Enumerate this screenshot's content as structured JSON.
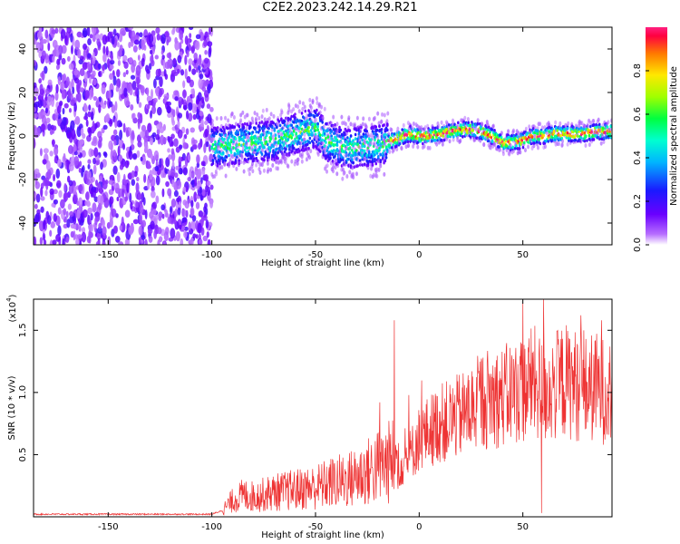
{
  "title": "C2E2.2023.242.14.29.R21",
  "chart_data": [
    {
      "type": "heatmap",
      "xlabel": "Height of straight line (km)",
      "ylabel": "Frequency (Hz)",
      "xlim": [
        -186,
        93
      ],
      "ylim": [
        -50,
        50
      ],
      "xticks": [
        -150,
        -100,
        -50,
        0,
        50
      ],
      "yticks": [
        -40,
        -20,
        0,
        20,
        40
      ],
      "colorbar": {
        "label": "Normalized spectral amplitude",
        "range": [
          0,
          1
        ],
        "ticks": [
          "0.0",
          "0.2",
          "0.4",
          "0.6",
          "0.8"
        ],
        "tick_values": [
          0.0,
          0.2,
          0.4,
          0.6,
          0.8
        ]
      },
      "ridge": {
        "x": [
          -97,
          -90,
          -80,
          -70,
          -60,
          -50,
          -45,
          -40,
          -35,
          -30,
          -25,
          -20,
          -15,
          -10,
          -5,
          0,
          5,
          10,
          15,
          20,
          25,
          30,
          35,
          40,
          45,
          50,
          55,
          60,
          65,
          70,
          75,
          80,
          85,
          90
        ],
        "freq": [
          -5,
          -4,
          -3,
          -2,
          1,
          4,
          -2,
          -4,
          -6,
          -5,
          -5,
          -4,
          -3,
          -1,
          1,
          0,
          0,
          1,
          2,
          3,
          3,
          2,
          0,
          -3,
          -3,
          -2,
          0,
          0,
          1,
          1,
          1,
          1,
          2,
          2
        ]
      },
      "noise_region_x": [
        -186,
        -100
      ]
    },
    {
      "type": "line",
      "xlabel": "Height of straight line (km)",
      "ylabel": "SNR (10 * v/v)",
      "y_multiplier": "(x10",
      "y_multiplier_exp": "4",
      "y_multiplier_close": ")",
      "xlim": [
        -186,
        93
      ],
      "ylim": [
        0,
        1.75
      ],
      "xticks": [
        -150,
        -100,
        -50,
        0,
        50
      ],
      "yticks": [
        0.5,
        1.0,
        1.5
      ],
      "ytick_labels": [
        "0.5",
        "1.0",
        "1.5"
      ],
      "series": [
        {
          "color": "#ee3333",
          "x": [
            -186,
            -150,
            -100,
            -95,
            -90,
            -85,
            -80,
            -70,
            -60,
            -50,
            -45,
            -40,
            -35,
            -30,
            -25,
            -20,
            -15,
            -12,
            -10,
            -5,
            0,
            5,
            10,
            15,
            20,
            25,
            30,
            35,
            40,
            45,
            50,
            55,
            60,
            65,
            70,
            75,
            80,
            85,
            90,
            93
          ],
          "y": [
            0.02,
            0.02,
            0.02,
            0.05,
            0.12,
            0.16,
            0.15,
            0.18,
            0.2,
            0.22,
            0.24,
            0.26,
            0.27,
            0.3,
            0.33,
            0.37,
            0.4,
            0.42,
            0.38,
            0.46,
            0.6,
            0.66,
            0.72,
            0.74,
            0.78,
            0.82,
            0.9,
            0.92,
            0.92,
            0.96,
            0.98,
            1.04,
            0.96,
            1.0,
            1.05,
            1.02,
            0.98,
            1.0,
            0.96,
            0.98
          ]
        }
      ],
      "spikes": [
        {
          "x": -19,
          "y": 0.92
        },
        {
          "x": -12,
          "y": 1.58
        },
        {
          "x": 24,
          "y": 1.1
        },
        {
          "x": 50,
          "y": 1.72
        },
        {
          "x": 60,
          "y": 1.75
        },
        {
          "x": 59,
          "y": 0.03
        },
        {
          "x": 78,
          "y": 1.62
        },
        {
          "x": 88,
          "y": 1.58
        }
      ]
    }
  ]
}
